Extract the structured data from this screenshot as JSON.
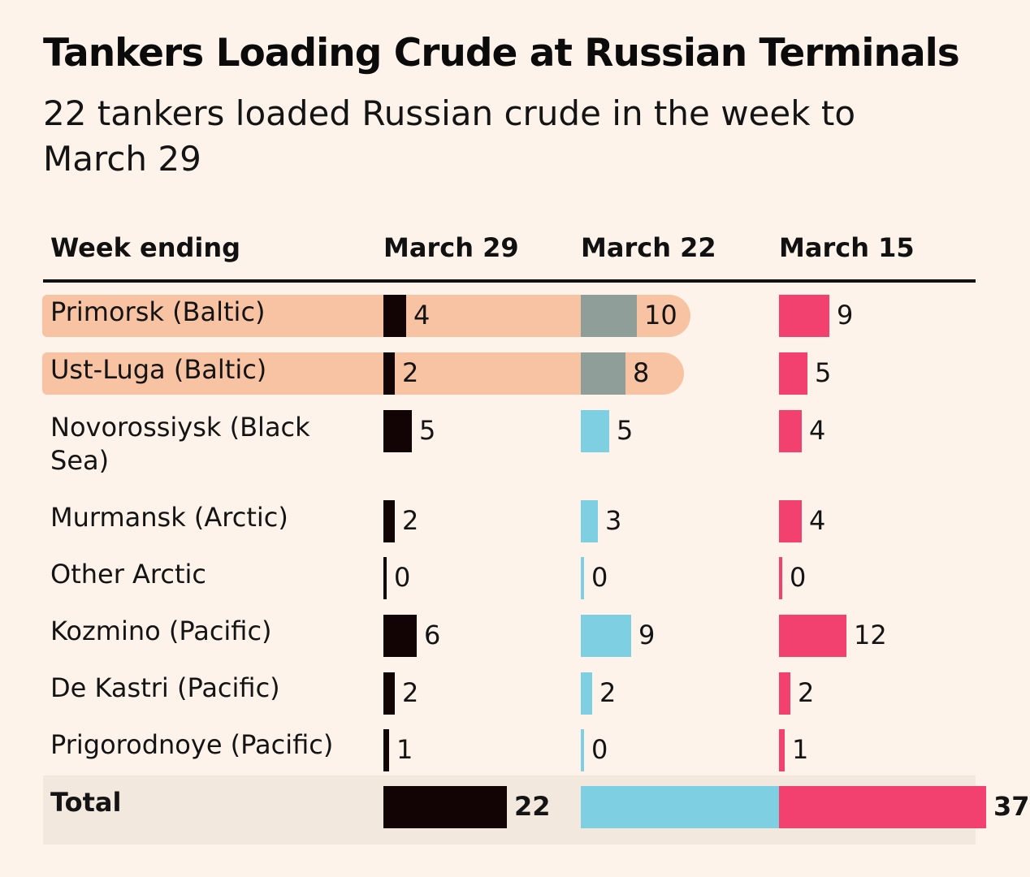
{
  "colors": {
    "background": "#fdf3ea",
    "highlight": "#f8c3a3",
    "march29": "#120404",
    "march22": "#7ecfe1",
    "march22_muted": "#8f9e98",
    "march15": "#f2406f"
  },
  "chart_data": {
    "type": "table",
    "title": "Tankers Loading Crude at Russian Terminals",
    "subtitle": "22 tankers loaded Russian crude in the week to March 29",
    "row_header": "Week ending",
    "columns": [
      "March 29",
      "March 22",
      "March 15"
    ],
    "rows": [
      {
        "label": "Primorsk (Baltic)",
        "values": [
          4,
          10,
          9
        ],
        "highlighted": true
      },
      {
        "label": "Ust-Luga (Baltic)",
        "values": [
          2,
          8,
          5
        ],
        "highlighted": true
      },
      {
        "label": "Novorossiysk (Black Sea)",
        "values": [
          5,
          5,
          4
        ],
        "highlighted": false
      },
      {
        "label": "Murmansk (Arctic)",
        "values": [
          2,
          3,
          4
        ],
        "highlighted": false
      },
      {
        "label": "Other Arctic",
        "values": [
          0,
          0,
          0
        ],
        "highlighted": false
      },
      {
        "label": "Kozmino (Pacific)",
        "values": [
          6,
          9,
          12
        ],
        "highlighted": false
      },
      {
        "label": "De Kastri (Pacific)",
        "values": [
          2,
          2,
          2
        ],
        "highlighted": false
      },
      {
        "label": "Prigorodnoye (Pacific)",
        "values": [
          1,
          0,
          1
        ],
        "highlighted": false
      }
    ],
    "total": {
      "label": "Total",
      "values": [
        22,
        37,
        37
      ]
    }
  }
}
